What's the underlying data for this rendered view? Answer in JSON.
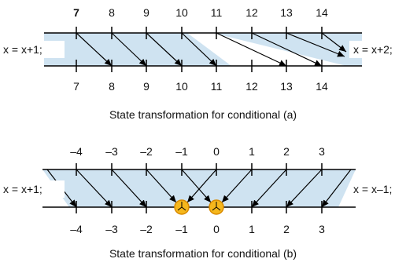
{
  "colors": {
    "band_fill": "#cfe3f1",
    "line": "#000000",
    "circle_fill": "#f5b71c",
    "circle_stroke": "#d98a00"
  },
  "diagram_a": {
    "top_labels": [
      "7",
      "8",
      "9",
      "10",
      "11",
      "12",
      "13",
      "14"
    ],
    "bottom_labels": [
      "7",
      "8",
      "9",
      "10",
      "11",
      "12",
      "13",
      "14"
    ],
    "left_label": "x = x+1;",
    "right_label": "x = x+2;",
    "caption": "State transformation for conditional (a)"
  },
  "diagram_b": {
    "top_labels": [
      "–4",
      "–3",
      "–2",
      "–1",
      "0",
      "1",
      "2",
      "3"
    ],
    "bottom_labels": [
      "–4",
      "–3",
      "–2",
      "–1",
      "0",
      "1",
      "2",
      "3"
    ],
    "left_label": "x = x+1;",
    "right_label": "x = x–1;",
    "caption": "State transformation for conditional (b)"
  }
}
